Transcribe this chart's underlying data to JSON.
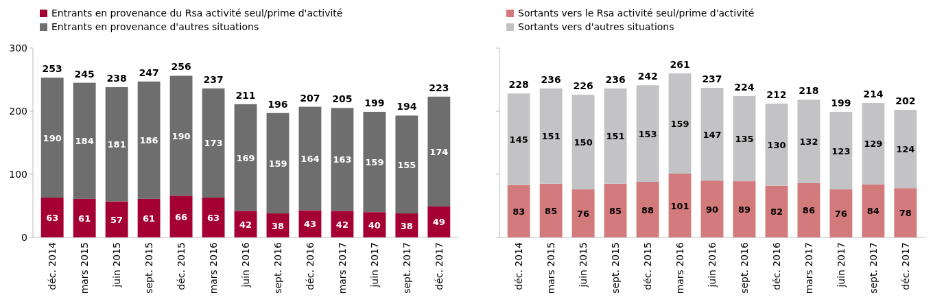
{
  "chart_data": [
    {
      "type": "bar",
      "stacked": true,
      "legend": "top left",
      "data_labels": true,
      "ylim": [
        0,
        300
      ],
      "yticks": [
        0,
        100,
        200,
        300
      ],
      "categories": [
        "déc. 2014",
        "mars 2015",
        "juin 2015",
        "sept. 2015",
        "déc. 2015",
        "mars 2016",
        "juin 2016",
        "sept. 2016",
        "déc. 2016",
        "mars 2017",
        "juin 2017",
        "sept. 2017",
        "déc. 2017"
      ],
      "series": [
        {
          "name": "Entrants en provenance du Rsa activité seul/prime d'activité",
          "color": "#a50034",
          "values": [
            63,
            61,
            57,
            61,
            66,
            63,
            42,
            38,
            43,
            42,
            40,
            38,
            49
          ]
        },
        {
          "name": "Entrants en provenance d'autres situations",
          "color": "#6e6e6e",
          "values": [
            190,
            184,
            181,
            186,
            190,
            173,
            169,
            159,
            164,
            163,
            159,
            155,
            174
          ]
        }
      ],
      "totals": [
        "253",
        "245",
        "238",
        "247",
        "256",
        "237",
        "211",
        "196",
        "207",
        "205",
        "199",
        "194",
        "223"
      ]
    },
    {
      "type": "bar",
      "stacked": true,
      "legend": "top left",
      "data_labels": true,
      "tick_labels": "x",
      "ylim": [
        0,
        300
      ],
      "yticks": [
        0,
        100,
        200,
        300
      ],
      "categories": [
        "déc. 2014",
        "mars 2015",
        "juin 2015",
        "sept. 2015",
        "déc. 2015",
        "mars 2016",
        "juin 2016",
        "sept. 2016",
        "déc. 2016",
        "mars 2017",
        "juin 2017",
        "sept. 2017",
        "déc. 2017"
      ],
      "series": [
        {
          "name": "Sortants vers le Rsa activité seul/prime d'activité",
          "color": "#d27a7c",
          "values": [
            83,
            85,
            76,
            85,
            88,
            101,
            90,
            89,
            82,
            86,
            76,
            84,
            78
          ]
        },
        {
          "name": "Sortants vers d'autres situations",
          "color": "#c3c3c5",
          "values": [
            145,
            151,
            150,
            151,
            153,
            159,
            147,
            135,
            130,
            132,
            123,
            129,
            124
          ]
        }
      ],
      "totals": [
        "228",
        "236",
        "226",
        "236",
        "242",
        "261",
        "237",
        "224",
        "212",
        "218",
        "199",
        "214",
        "202"
      ]
    }
  ]
}
